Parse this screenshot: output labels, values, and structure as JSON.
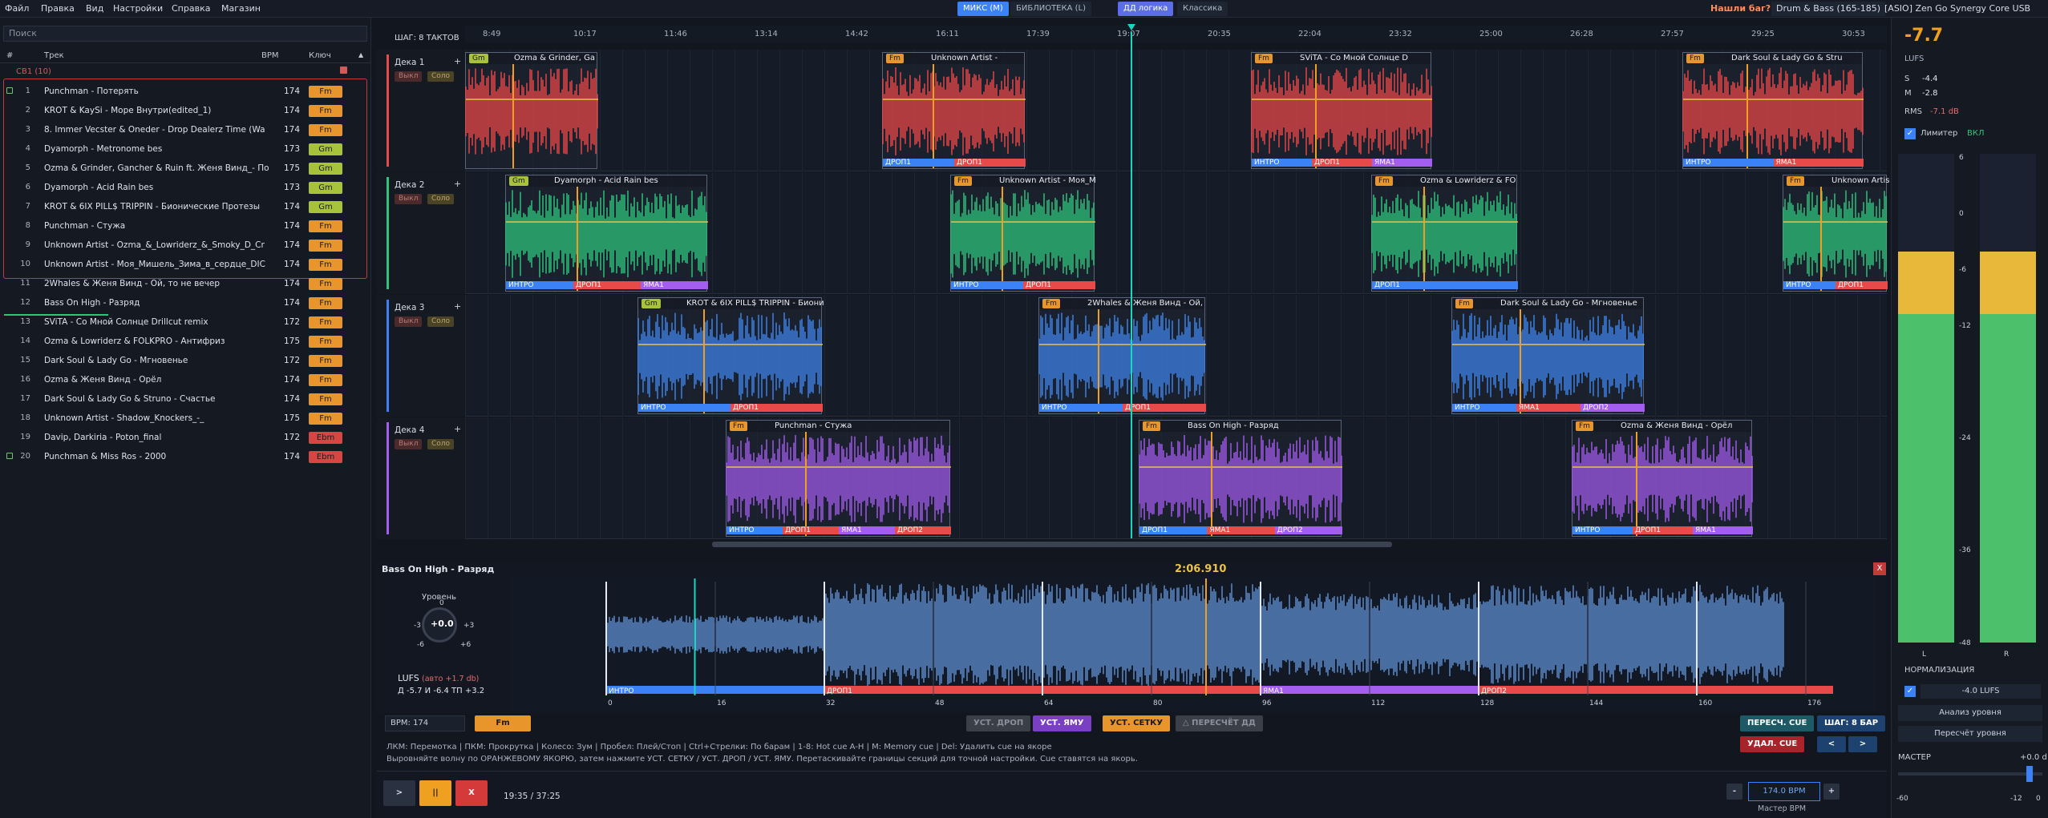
{
  "menubar": {
    "items": [
      "Файл",
      "Правка",
      "Вид",
      "Настройки",
      "Справка",
      "Магазин"
    ],
    "modes": [
      "МИКС (M)",
      "БИБЛИОТЕКА (L)"
    ],
    "logic": [
      "ДД логика",
      "Классика"
    ],
    "found_bug": "Нашли баг?",
    "genre": "Drum & Bass (165-185)",
    "device": "[ASIO] Zen Go Synergy Core USB"
  },
  "library": {
    "search_placeholder": "Поиск",
    "headers": {
      "num": "#",
      "track": "Трек",
      "bpm": "BPM",
      "key": "Ключ"
    },
    "group": "CB1 (10)",
    "rows": [
      {
        "n": "1",
        "t": "Punchman - Потерять",
        "bpm": "174",
        "key": "Fm",
        "kc": "#e8962b",
        "lock": true
      },
      {
        "n": "2",
        "t": "KROT & KaySi - Море Внутри(edited_1)",
        "bpm": "174",
        "key": "Fm",
        "kc": "#e8962b"
      },
      {
        "n": "3",
        "t": "8. Immer Vecster & Oneder - Drop Dealerz Time (Wa",
        "bpm": "174",
        "key": "Fm",
        "kc": "#e8962b"
      },
      {
        "n": "4",
        "t": "Dyamorph - Metronome bes",
        "bpm": "173",
        "key": "Gm",
        "kc": "#a8c23a"
      },
      {
        "n": "5",
        "t": "Ozma & Grinder, Gancher & Ruin ft. Женя Винд_- По",
        "bpm": "175",
        "key": "Gm",
        "kc": "#a8c23a"
      },
      {
        "n": "6",
        "t": "Dyamorph - Acid Rain bes",
        "bpm": "173",
        "key": "Gm",
        "kc": "#a8c23a"
      },
      {
        "n": "7",
        "t": "KROT & 6IX PILL$ TRIPPIN - Бионические Протезы",
        "bpm": "174",
        "key": "Gm",
        "kc": "#a8c23a"
      },
      {
        "n": "8",
        "t": "Punchman - Стужа",
        "bpm": "174",
        "key": "Fm",
        "kc": "#e8962b"
      },
      {
        "n": "9",
        "t": "Unknown Artist - Ozma_&_Lowriderz_&_Smoky_D_Cr",
        "bpm": "174",
        "key": "Fm",
        "kc": "#e8962b"
      },
      {
        "n": "10",
        "t": "Unknown Artist - Моя_Мишель_Зима_в_сердце_DIC",
        "bpm": "174",
        "key": "Fm",
        "kc": "#e8962b"
      },
      {
        "n": "11",
        "t": "2Whales & Женя Винд - Ой, то не вечер",
        "bpm": "174",
        "key": "Fm",
        "kc": "#e8962b"
      },
      {
        "n": "12",
        "t": "Bass On High - Разряд",
        "bpm": "174",
        "key": "Fm",
        "kc": "#e8962b"
      },
      {
        "n": "13",
        "t": "SViTA - Со Мной Солнце Drillcut remix",
        "bpm": "172",
        "key": "Fm",
        "kc": "#e8962b"
      },
      {
        "n": "14",
        "t": "Ozma & Lowriderz & FOLKPRO - Антифриз",
        "bpm": "175",
        "key": "Fm",
        "kc": "#e8962b"
      },
      {
        "n": "15",
        "t": "Dark Soul & Lady Go - Мгновенье",
        "bpm": "172",
        "key": "Fm",
        "kc": "#e8962b"
      },
      {
        "n": "16",
        "t": "Ozma & Женя Винд - Орёл",
        "bpm": "174",
        "key": "Fm",
        "kc": "#e8962b"
      },
      {
        "n": "17",
        "t": "Dark Soul & Lady Go & Struno - Счастье",
        "bpm": "174",
        "key": "Fm",
        "kc": "#e8962b"
      },
      {
        "n": "18",
        "t": "Unknown Artist - Shadow_Knockers_-_",
        "bpm": "175",
        "key": "Fm",
        "kc": "#e8962b"
      },
      {
        "n": "19",
        "t": "Davip, Darkiria - Poton_final",
        "bpm": "172",
        "key": "Ebm",
        "kc": "#d84545"
      },
      {
        "n": "20",
        "t": "Punchman & Miss Ros - 2000",
        "bpm": "174",
        "key": "Ebm",
        "kc": "#d84545",
        "lock": true
      }
    ]
  },
  "timeline": {
    "step": "ШАГ: 8 ТАКТОВ",
    "ticks": [
      "8:49",
      "10:17",
      "11:46",
      "13:14",
      "14:42",
      "16:11",
      "17:39",
      "19:07",
      "20:35",
      "22:04",
      "23:32",
      "25:00",
      "26:28",
      "27:57",
      "29:25",
      "30:53"
    ],
    "decks": [
      {
        "name": "Дека 1",
        "color": "#e84a4a",
        "wave": "#f04848",
        "clips": [
          {
            "title": "Ozma & Grinder, Ga",
            "key": "Gm",
            "kc": "#a8c23a",
            "x": 0,
            "w": 165,
            "sections": [
              "",
              ""
            ]
          },
          {
            "title": "Unknown Artist -",
            "key": "Fm",
            "kc": "#e8962b",
            "x": 520,
            "w": 178,
            "sections": [
              "ДРОП1",
              "ДРОП1"
            ]
          },
          {
            "title": "SViTA - Со Мной Солнце D",
            "key": "Fm",
            "kc": "#e8962b",
            "x": 980,
            "w": 225,
            "sections": [
              "ИНТРО",
              "ДРОП1",
              "ЯМА1"
            ]
          },
          {
            "title": "Dark Soul & Lady Go & Stru",
            "key": "Fm",
            "kc": "#e8962b",
            "x": 1518,
            "w": 225,
            "sections": [
              "ИНТРО",
              "ЯМА1"
            ]
          }
        ]
      },
      {
        "name": "Дека 2",
        "color": "#2fc47a",
        "wave": "#2ecb80",
        "clips": [
          {
            "title": "Dyamorph - Acid Rain bes",
            "key": "Gm",
            "kc": "#a8c23a",
            "x": 50,
            "w": 252,
            "sections": [
              "ИНТРО",
              "ДРОП1",
              "ЯМА1"
            ]
          },
          {
            "title": "Unknown Artist - Моя_М",
            "key": "Fm",
            "kc": "#e8962b",
            "x": 605,
            "w": 180,
            "sections": [
              "ИНТРО",
              "ДРОП1"
            ]
          },
          {
            "title": "Ozma & Lowriderz & FO",
            "key": "Fm",
            "kc": "#e8962b",
            "x": 1130,
            "w": 182,
            "sections": [
              "ДРОП1"
            ]
          },
          {
            "title": "Unknown Artis",
            "key": "Fm",
            "kc": "#e8962b",
            "x": 1643,
            "w": 130,
            "sections": [
              "ИНТРО",
              "ДРОП1"
            ]
          }
        ]
      },
      {
        "name": "Дека 3",
        "color": "#3b82f6",
        "wave": "#3f88f2",
        "clips": [
          {
            "title": "KROT & 6IX PILL$ TRIPPIN - Биони",
            "key": "Gm",
            "kc": "#a8c23a",
            "x": 215,
            "w": 230,
            "sections": [
              "ИНТРО",
              "ДРОП1"
            ]
          },
          {
            "title": "2Whales & Женя Винд - Ой,",
            "key": "Fm",
            "kc": "#e8962b",
            "x": 715,
            "w": 208,
            "sections": [
              "ИНТРО",
              "ДРОП1"
            ]
          },
          {
            "title": "Dark Soul & Lady Go - Мгновенье",
            "key": "Fm",
            "kc": "#e8962b",
            "x": 1230,
            "w": 240,
            "sections": [
              "ИНТРО",
              "ЯМА1",
              "ДРОП2"
            ]
          }
        ]
      },
      {
        "name": "Дека 4",
        "color": "#a35ef0",
        "wave": "#a65df2",
        "clips": [
          {
            "title": "Punchman - Стужа",
            "key": "Fm",
            "kc": "#e8962b",
            "x": 325,
            "w": 280,
            "sections": [
              "ИНТРО",
              "ДРОП1",
              "ЯМА1",
              "ДРОП2"
            ]
          },
          {
            "title": "Bass On High - Разряд",
            "key": "Fm",
            "kc": "#e8962b",
            "x": 840,
            "w": 253,
            "sections": [
              "ДРОП1",
              "ЯМА1",
              "ДРОП2"
            ]
          },
          {
            "title": "Ozma & Женя Винд - Орёл",
            "key": "Fm",
            "kc": "#e8962b",
            "x": 1380,
            "w": 225,
            "sections": [
              "ИНТРО",
              "ДРОП1",
              "ЯМА1"
            ]
          }
        ]
      }
    ],
    "deck_mute": "Выкл",
    "deck_solo": "Соло"
  },
  "editor": {
    "title": "Bass On High - Разряд",
    "time": "2:06.910",
    "close": "X",
    "level_label": "Уровень",
    "knob_value": "+0.0",
    "knob_scale": [
      "0",
      "-3",
      "+3",
      "-6",
      "+6"
    ],
    "lufs_label": "LUFS",
    "lufs_auto": "(авто +1.7 db)",
    "lufs_stats": "Д -5.7  И -6.4  ТП +3.2",
    "sections": [
      {
        "name": "ИНТРО",
        "c": "#3b82f6",
        "from": 0,
        "to": 32
      },
      {
        "name": "ДРОП1",
        "c": "#e84a4a",
        "from": 32,
        "to": 96
      },
      {
        "name": "ЯМА1",
        "c": "#a35ef0",
        "from": 96,
        "to": 128
      },
      {
        "name": "ДРОП2",
        "c": "#e84a4a",
        "from": 128,
        "to": 180
      }
    ],
    "bars": [
      "0",
      "16",
      "32",
      "48",
      "64",
      "80",
      "96",
      "112",
      "128",
      "144",
      "160",
      "176"
    ],
    "bpm_field": "BPM: 174",
    "key": "Fm",
    "btn_drop": "УСТ. ДРОП",
    "btn_pit": "УСТ. ЯМУ",
    "btn_grid": "УСТ. СЕТКУ",
    "btn_recalc": "△ ПЕРЕСЧЁТ ДД",
    "btn_recue": "ПЕРЕСЧ. CUE",
    "btn_step": "ШАГ: 8 БАР",
    "btn_delcue": "УДАЛ. CUE",
    "btn_prev": "<",
    "btn_next": ">",
    "help1": "ЛКМ: Перемотка  |  ПКМ: Прокрутка  |  Колесо: Зум  |  Пробел: Плей/Стоп  |  Ctrl+Стрелки: По барам  |  1-8: Hot cue A-H  |  M: Memory cue  |  Del: Удалить cue на якоре",
    "help2": "Выровняйте волну по ОРАНЖЕВОМУ ЯКОРЮ, затем нажмите УСТ. СЕТКУ / УСТ. ДРОП / УСТ. ЯМУ. Перетаскивайте границы секций для точной настройки. Cue ставятся на якорь."
  },
  "transport": {
    "play": ">",
    "pause": "||",
    "stop": "X",
    "time": "19:35 / 37:25",
    "minus": "-",
    "plus": "+",
    "master_bpm": "174.0 BPM",
    "master_label": "Мастер BPM"
  },
  "meters": {
    "lufs_big": "-7.7",
    "lufs_unit": "LUFS",
    "s_label": "S",
    "s_val": "-4.4",
    "m_label": "M",
    "m_val": "-2.8",
    "rms_label": "RMS",
    "rms_val": "-7.1 dB",
    "limiter_label": "Лимитер",
    "limiter_state": "ВКЛ",
    "scale": [
      "6",
      "0",
      "-6",
      "-12",
      "-24",
      "-36",
      "-48"
    ],
    "ch_l": "L",
    "ch_r": "R",
    "l_level": 0.8,
    "r_level": 0.8,
    "norm_label": "НОРМАЛИЗАЦИЯ",
    "norm_target": "-4.0 LUFS",
    "analyze": "Анализ уровня",
    "recalc": "Пересчёт уровня",
    "master_label": "МАСТЕР",
    "master_val": "+0.0 d",
    "master_scale": [
      "-60",
      "-12",
      "0"
    ]
  }
}
